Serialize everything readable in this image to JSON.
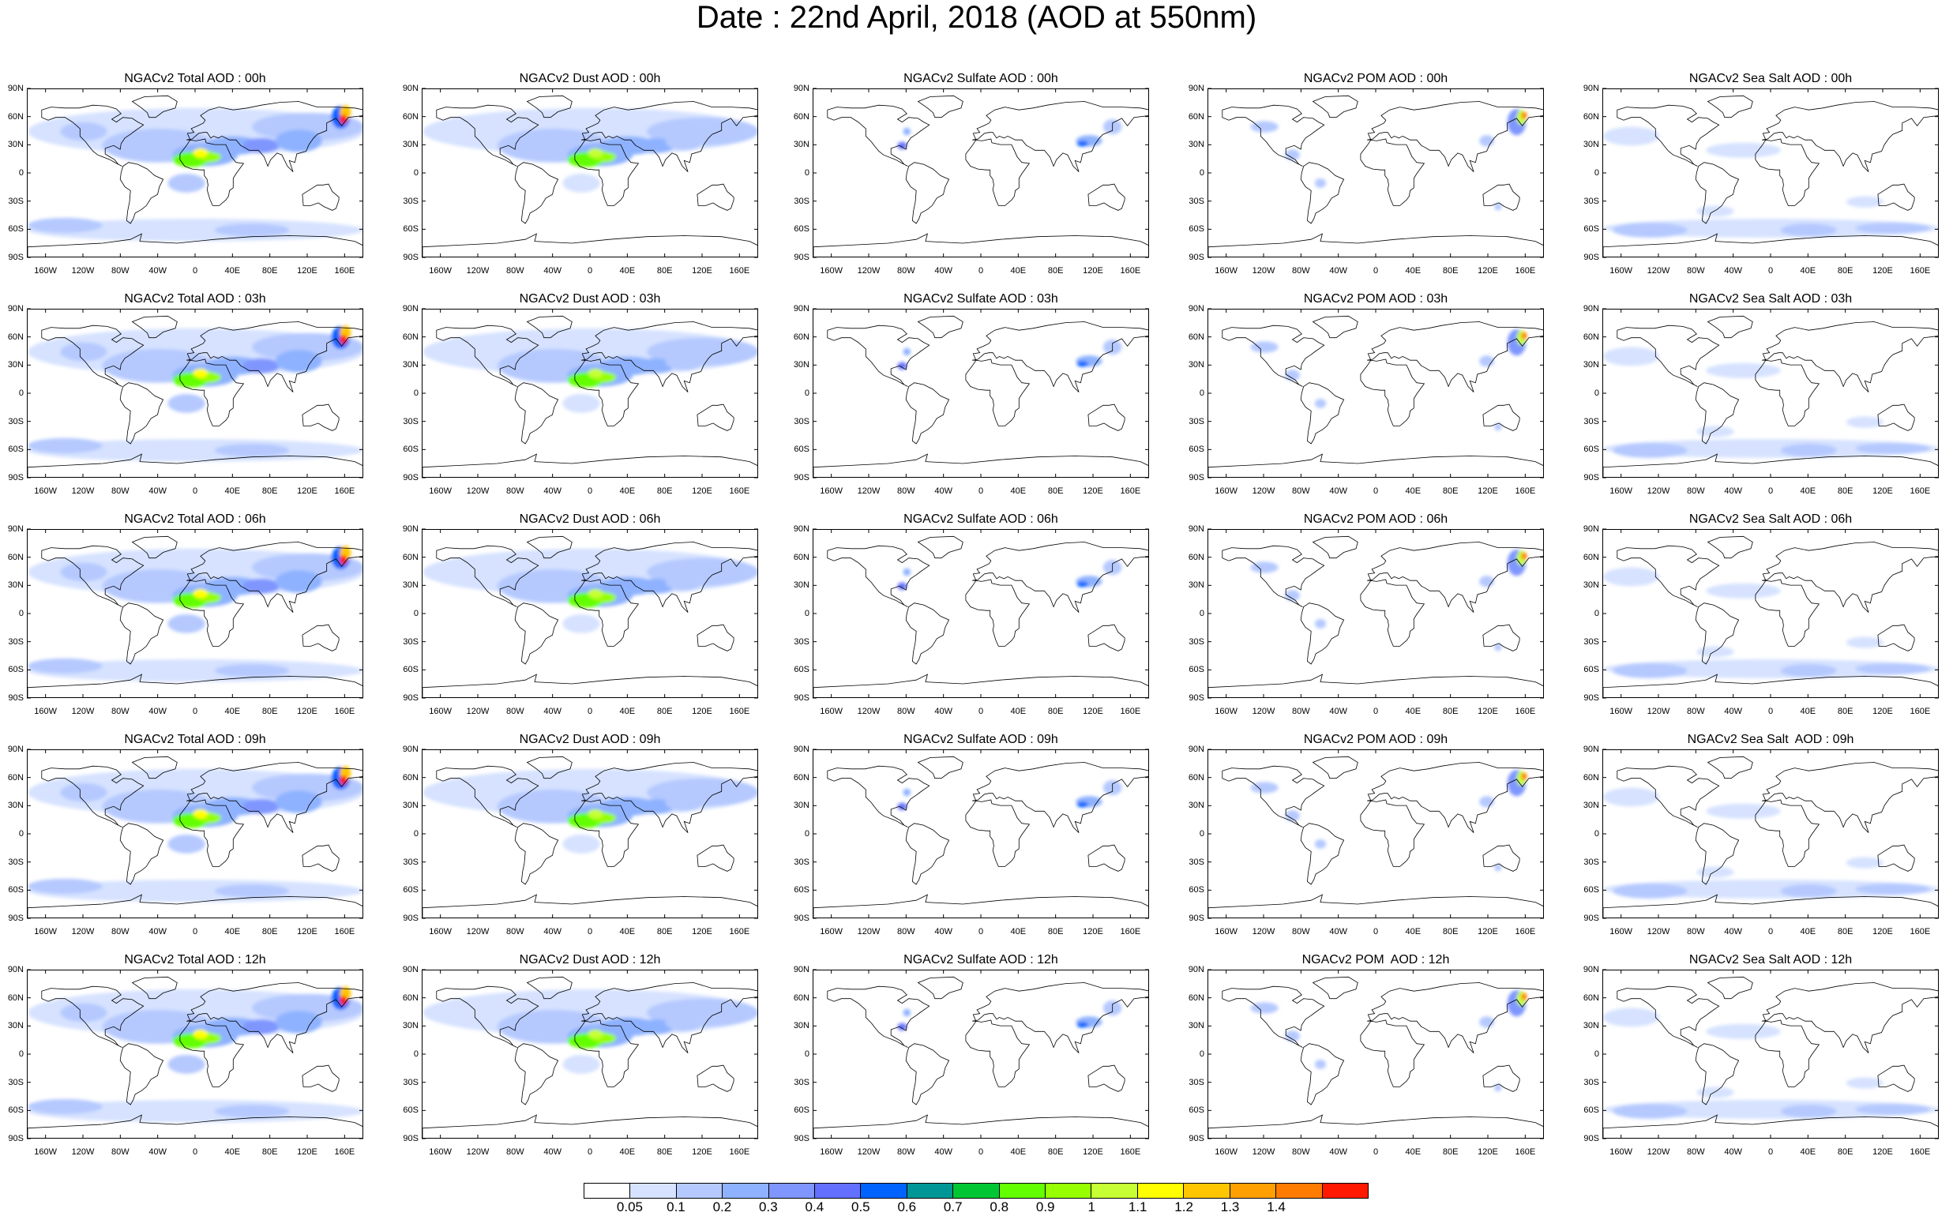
{
  "title": "Date : 22nd April, 2018 (AOD at 550nm)",
  "lat_labels": [
    "90N",
    "60N",
    "30N",
    "0",
    "30S",
    "60S",
    "90S"
  ],
  "lon_labels": [
    "160W",
    "120W",
    "80W",
    "40W",
    "0",
    "40E",
    "80E",
    "120E",
    "160E"
  ],
  "lat_values": [
    90,
    60,
    30,
    0,
    -30,
    -60,
    -90
  ],
  "lon_values": [
    -160,
    -120,
    -80,
    -40,
    0,
    40,
    80,
    120,
    160
  ],
  "colorbar": {
    "colors": [
      "#ffffff",
      "#d6e2ff",
      "#b5c9ff",
      "#8eb2ff",
      "#7f96ff",
      "#6370ff",
      "#0063ff",
      "#009696",
      "#00c633",
      "#63ff00",
      "#96ff00",
      "#c6ff33",
      "#ffff00",
      "#ffc600",
      "#ffa000",
      "#ff7c00",
      "#ff1900"
    ],
    "labels": [
      "0.05",
      "0.1",
      "0.2",
      "0.3",
      "0.4",
      "0.5",
      "0.6",
      "0.7",
      "0.8",
      "0.9",
      "1",
      "1.1",
      "1.2",
      "1.3",
      "1.4"
    ]
  },
  "panels": [
    {
      "title": "NGACv2 Total AOD : 00h",
      "type": "total"
    },
    {
      "title": "NGACv2 Dust AOD : 00h",
      "type": "dust"
    },
    {
      "title": "NGACv2 Sulfate AOD : 00h",
      "type": "sulfate"
    },
    {
      "title": "NGACv2 POM AOD : 00h",
      "type": "pom"
    },
    {
      "title": "NGACv2 Sea Salt AOD : 00h",
      "type": "seasalt"
    },
    {
      "title": "NGACv2 Total AOD : 03h",
      "type": "total"
    },
    {
      "title": "NGACv2 Dust AOD : 03h",
      "type": "dust"
    },
    {
      "title": "NGACv2 Sulfate AOD : 03h",
      "type": "sulfate"
    },
    {
      "title": "NGACv2 POM AOD : 03h",
      "type": "pom"
    },
    {
      "title": "NGACv2 Sea Salt AOD : 03h",
      "type": "seasalt"
    },
    {
      "title": "NGACv2 Total AOD : 06h",
      "type": "total"
    },
    {
      "title": "NGACv2 Dust AOD : 06h",
      "type": "dust"
    },
    {
      "title": "NGACv2 Sulfate AOD : 06h",
      "type": "sulfate"
    },
    {
      "title": "NGACv2 POM AOD : 06h",
      "type": "pom"
    },
    {
      "title": "NGACv2 Sea Salt AOD : 06h",
      "type": "seasalt"
    },
    {
      "title": "NGACv2 Total AOD : 09h",
      "type": "total"
    },
    {
      "title": "NGACv2 Dust AOD : 09h",
      "type": "dust"
    },
    {
      "title": "NGACv2 Sulfate AOD : 09h",
      "type": "sulfate"
    },
    {
      "title": "NGACv2 POM AOD : 09h",
      "type": "pom"
    },
    {
      "title": "NGACv2 Sea Salt  AOD : 09h",
      "type": "seasalt"
    },
    {
      "title": "NGACv2 Total AOD : 12h",
      "type": "total"
    },
    {
      "title": "NGACv2 Dust AOD : 12h",
      "type": "dust"
    },
    {
      "title": "NGACv2 Sulfate AOD : 12h",
      "type": "sulfate"
    },
    {
      "title": "NGACv2 POM  AOD : 12h",
      "type": "pom"
    },
    {
      "title": "NGACv2 Sea Salt AOD : 12h",
      "type": "seasalt"
    }
  ]
}
